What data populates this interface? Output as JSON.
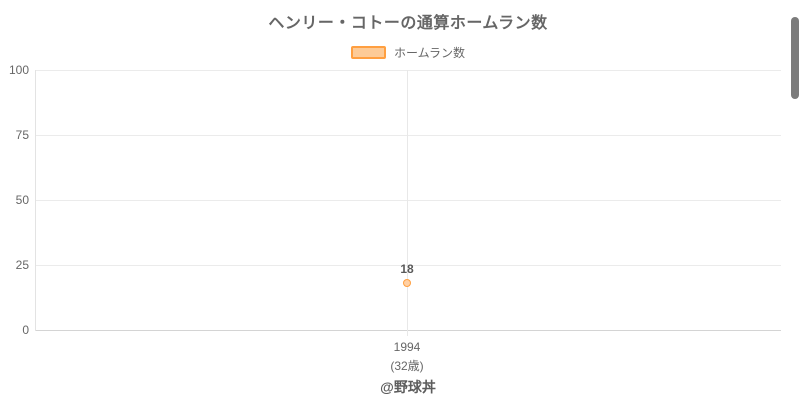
{
  "page": {
    "title": "ヘンリー・コトーの通算ホームラン数",
    "footer": "@野球丼"
  },
  "legend": {
    "label": "ホームラン数"
  },
  "y_axis": {
    "ticks": [
      "100",
      "75",
      "50",
      "25",
      "0"
    ]
  },
  "x_axis": {
    "year": "1994",
    "age": "(32歳)"
  },
  "point": {
    "value_label": "18"
  },
  "colors": {
    "accent_border": "#ff9f40",
    "accent_fill": "#fdcb97",
    "point_fill": "#ffd0a4",
    "text": "#666666",
    "gridline": "#ebebeb",
    "axis_line": "#d4d4d4",
    "scrollbar": "#7b7b7b"
  },
  "chart_data": {
    "type": "line",
    "title": "ヘンリー・コトーの通算ホームラン数",
    "categories": [
      "1994 (32歳)"
    ],
    "series": [
      {
        "name": "ホームラン数",
        "values": [
          18
        ]
      }
    ],
    "data_labels": [
      "18"
    ],
    "xlabel": "",
    "ylabel": "",
    "ylim": [
      0,
      100
    ],
    "yticks": [
      0,
      25,
      50,
      75,
      100
    ],
    "grid": true,
    "legend_position": "top",
    "annotation": "@野球丼",
    "series_color": "#ff9f40"
  }
}
